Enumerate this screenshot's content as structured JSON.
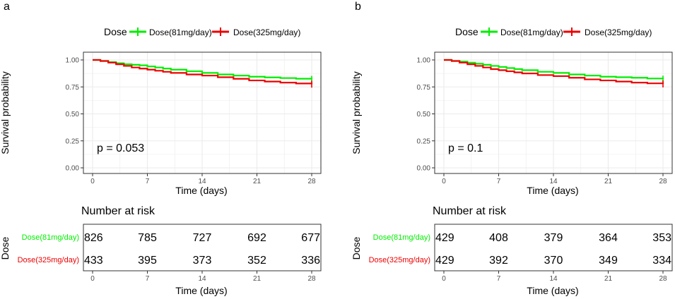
{
  "colors": {
    "low_dose": "#00ee00",
    "high_dose": "#ee0000",
    "grid": "#ebebeb",
    "axis": "#4d4d4d"
  },
  "chart_data": [
    {
      "type": "line",
      "panel_label": "a",
      "legend_title": "Dose",
      "legend_position": "top",
      "ylabel": "Survival probability",
      "xlabel": "Time (days)",
      "xlim": [
        0,
        28
      ],
      "ylim": [
        0,
        1
      ],
      "x_ticks": [
        0,
        7,
        14,
        21,
        28
      ],
      "y_ticks": [
        0,
        0.25,
        0.5,
        0.75,
        1
      ],
      "x_tick_labels": [
        "0",
        "7",
        "14",
        "21",
        "28"
      ],
      "y_tick_labels": [
        "0.00",
        "0.25",
        "0.50",
        "0.75",
        "1.00"
      ],
      "grid": true,
      "pvalue_text": "p = 0.053",
      "series": [
        {
          "name": "Dose(81mg/day)",
          "color": "#00ee00",
          "x": [
            0,
            1,
            2,
            3,
            4,
            5,
            6,
            7,
            8,
            9,
            10,
            12,
            14,
            16,
            18,
            20,
            22,
            24,
            26,
            28
          ],
          "y": [
            1.0,
            0.99,
            0.98,
            0.97,
            0.96,
            0.955,
            0.95,
            0.94,
            0.93,
            0.92,
            0.91,
            0.895,
            0.88,
            0.865,
            0.855,
            0.845,
            0.838,
            0.832,
            0.826,
            0.82
          ]
        },
        {
          "name": "Dose(325mg/day)",
          "color": "#ee0000",
          "x": [
            0,
            1,
            2,
            3,
            4,
            5,
            6,
            7,
            8,
            9,
            10,
            12,
            14,
            16,
            18,
            20,
            22,
            24,
            26,
            28
          ],
          "y": [
            1.0,
            0.99,
            0.975,
            0.96,
            0.945,
            0.93,
            0.92,
            0.91,
            0.9,
            0.89,
            0.88,
            0.865,
            0.855,
            0.84,
            0.825,
            0.81,
            0.8,
            0.79,
            0.782,
            0.776
          ]
        }
      ],
      "risk_table": {
        "title": "Number at risk",
        "ylabel": "Dose",
        "xlabel": "Time (days)",
        "times": [
          0,
          7,
          14,
          21,
          28
        ],
        "rows": [
          {
            "name": "Dose(81mg/day)",
            "color": "#00ee00",
            "values": [
              "826",
              "785",
              "727",
              "692",
              "677"
            ]
          },
          {
            "name": "Dose(325mg/day)",
            "color": "#ee0000",
            "values": [
              "433",
              "395",
              "373",
              "352",
              "336"
            ]
          }
        ]
      }
    },
    {
      "type": "line",
      "panel_label": "b",
      "legend_title": "Dose",
      "legend_position": "top",
      "ylabel": "Survival probability",
      "xlabel": "Time (days)",
      "xlim": [
        0,
        28
      ],
      "ylim": [
        0,
        1
      ],
      "x_ticks": [
        0,
        7,
        14,
        21,
        28
      ],
      "y_ticks": [
        0,
        0.25,
        0.5,
        0.75,
        1
      ],
      "x_tick_labels": [
        "0",
        "7",
        "14",
        "21",
        "28"
      ],
      "y_tick_labels": [
        "0.00",
        "0.25",
        "0.50",
        "0.75",
        "1.00"
      ],
      "grid": true,
      "pvalue_text": "p = 0.1",
      "series": [
        {
          "name": "Dose(81mg/day)",
          "color": "#00ee00",
          "x": [
            0,
            1,
            2,
            3,
            4,
            5,
            6,
            7,
            8,
            9,
            10,
            12,
            14,
            16,
            18,
            20,
            22,
            24,
            26,
            28
          ],
          "y": [
            1.0,
            0.99,
            0.985,
            0.975,
            0.965,
            0.955,
            0.945,
            0.935,
            0.925,
            0.915,
            0.905,
            0.89,
            0.88,
            0.865,
            0.855,
            0.845,
            0.84,
            0.835,
            0.828,
            0.822
          ]
        },
        {
          "name": "Dose(325mg/day)",
          "color": "#ee0000",
          "x": [
            0,
            1,
            2,
            3,
            4,
            5,
            6,
            7,
            8,
            9,
            10,
            12,
            14,
            16,
            18,
            20,
            22,
            24,
            26,
            28
          ],
          "y": [
            1.0,
            0.99,
            0.975,
            0.96,
            0.945,
            0.93,
            0.915,
            0.905,
            0.895,
            0.885,
            0.875,
            0.86,
            0.85,
            0.835,
            0.82,
            0.81,
            0.8,
            0.79,
            0.783,
            0.778
          ]
        }
      ],
      "risk_table": {
        "title": "Number at risk",
        "ylabel": "Dose",
        "xlabel": "Time (days)",
        "times": [
          0,
          7,
          14,
          21,
          28
        ],
        "rows": [
          {
            "name": "Dose(81mg/day)",
            "color": "#00ee00",
            "values": [
              "429",
              "408",
              "379",
              "364",
              "353"
            ]
          },
          {
            "name": "Dose(325mg/day)",
            "color": "#ee0000",
            "values": [
              "429",
              "392",
              "370",
              "349",
              "334"
            ]
          }
        ]
      }
    }
  ]
}
